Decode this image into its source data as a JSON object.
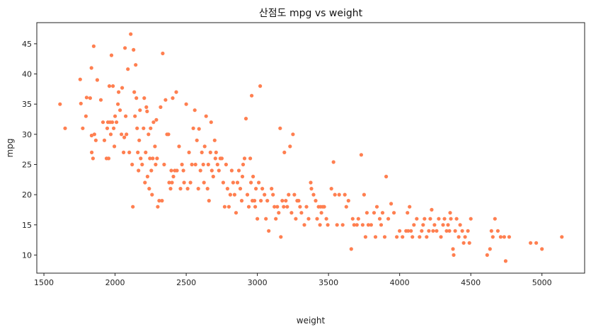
{
  "chart_data": {
    "type": "scatter",
    "title": "산점도 mpg vs weight",
    "xlabel": "weight",
    "ylabel": "mpg",
    "xlim": [
      1450,
      5300
    ],
    "ylim": [
      7,
      48.5
    ],
    "xticks": [
      1500,
      2000,
      2500,
      3000,
      3500,
      4000,
      4500,
      5000
    ],
    "yticks": [
      10,
      15,
      20,
      25,
      30,
      35,
      40,
      45
    ],
    "grid": false,
    "marker_color": "#FF7F50",
    "points": [
      [
        1613,
        35
      ],
      [
        1649,
        31
      ],
      [
        1755,
        39.1
      ],
      [
        1760,
        35.1
      ],
      [
        1773,
        31
      ],
      [
        1795,
        33
      ],
      [
        1800,
        36.1
      ],
      [
        1825,
        36
      ],
      [
        1834,
        41
      ],
      [
        1835,
        29.8
      ],
      [
        1836,
        27
      ],
      [
        1845,
        26
      ],
      [
        1850,
        44.6
      ],
      [
        1855,
        30
      ],
      [
        1865,
        29
      ],
      [
        1875,
        39
      ],
      [
        1900,
        35.7
      ],
      [
        1915,
        32
      ],
      [
        1925,
        29
      ],
      [
        1940,
        26
      ],
      [
        1945,
        31
      ],
      [
        1950,
        32
      ],
      [
        1955,
        26
      ],
      [
        1960,
        38
      ],
      [
        1965,
        32
      ],
      [
        1970,
        30
      ],
      [
        1975,
        43.1
      ],
      [
        1980,
        32
      ],
      [
        1985,
        38
      ],
      [
        1990,
        31
      ],
      [
        1995,
        28
      ],
      [
        2000,
        33
      ],
      [
        2010,
        32
      ],
      [
        2020,
        35
      ],
      [
        2025,
        37
      ],
      [
        2035,
        34
      ],
      [
        2045,
        30
      ],
      [
        2050,
        37.7
      ],
      [
        2060,
        27
      ],
      [
        2065,
        29.5
      ],
      [
        2070,
        44.3
      ],
      [
        2075,
        33
      ],
      [
        2080,
        30
      ],
      [
        2090,
        40.8
      ],
      [
        2100,
        27
      ],
      [
        2110,
        46.6
      ],
      [
        2120,
        25
      ],
      [
        2125,
        18
      ],
      [
        2130,
        44
      ],
      [
        2135,
        37
      ],
      [
        2140,
        33
      ],
      [
        2145,
        41.5
      ],
      [
        2150,
        36
      ],
      [
        2155,
        31
      ],
      [
        2160,
        27
      ],
      [
        2165,
        24
      ],
      [
        2170,
        29
      ],
      [
        2175,
        34
      ],
      [
        2180,
        26
      ],
      [
        2190,
        25
      ],
      [
        2200,
        31
      ],
      [
        2205,
        36
      ],
      [
        2210,
        22
      ],
      [
        2215,
        27
      ],
      [
        2220,
        34.5
      ],
      [
        2225,
        33.8
      ],
      [
        2228,
        23
      ],
      [
        2235,
        30
      ],
      [
        2240,
        21
      ],
      [
        2245,
        26
      ],
      [
        2250,
        31
      ],
      [
        2255,
        24
      ],
      [
        2260,
        20
      ],
      [
        2265,
        26
      ],
      [
        2270,
        32
      ],
      [
        2280,
        28
      ],
      [
        2285,
        25
      ],
      [
        2290,
        32.4
      ],
      [
        2295,
        26
      ],
      [
        2300,
        18
      ],
      [
        2310,
        19
      ],
      [
        2320,
        34.5
      ],
      [
        2330,
        19
      ],
      [
        2335,
        43.4
      ],
      [
        2345,
        25
      ],
      [
        2355,
        35.7
      ],
      [
        2365,
        30
      ],
      [
        2375,
        30
      ],
      [
        2380,
        22
      ],
      [
        2390,
        21
      ],
      [
        2395,
        24
      ],
      [
        2400,
        22
      ],
      [
        2405,
        36
      ],
      [
        2410,
        23
      ],
      [
        2420,
        24
      ],
      [
        2430,
        37
      ],
      [
        2435,
        24
      ],
      [
        2450,
        28
      ],
      [
        2460,
        21
      ],
      [
        2470,
        25
      ],
      [
        2480,
        24
      ],
      [
        2485,
        22
      ],
      [
        2500,
        35
      ],
      [
        2510,
        21
      ],
      [
        2520,
        27
      ],
      [
        2530,
        22
      ],
      [
        2540,
        25
      ],
      [
        2550,
        31
      ],
      [
        2560,
        34
      ],
      [
        2565,
        25
      ],
      [
        2575,
        29
      ],
      [
        2585,
        21
      ],
      [
        2590,
        30.9
      ],
      [
        2600,
        24
      ],
      [
        2610,
        27
      ],
      [
        2620,
        25
      ],
      [
        2625,
        22
      ],
      [
        2630,
        28
      ],
      [
        2640,
        33
      ],
      [
        2650,
        21
      ],
      [
        2655,
        25
      ],
      [
        2660,
        19
      ],
      [
        2670,
        27
      ],
      [
        2675,
        32
      ],
      [
        2680,
        24
      ],
      [
        2690,
        23
      ],
      [
        2700,
        29
      ],
      [
        2705,
        26
      ],
      [
        2710,
        27
      ],
      [
        2720,
        25
      ],
      [
        2730,
        24
      ],
      [
        2740,
        26
      ],
      [
        2750,
        26
      ],
      [
        2760,
        22
      ],
      [
        2770,
        18
      ],
      [
        2780,
        25
      ],
      [
        2790,
        21
      ],
      [
        2800,
        18
      ],
      [
        2810,
        20
      ],
      [
        2820,
        24
      ],
      [
        2830,
        22
      ],
      [
        2840,
        20
      ],
      [
        2850,
        17
      ],
      [
        2860,
        22
      ],
      [
        2870,
        24
      ],
      [
        2880,
        21
      ],
      [
        2890,
        19
      ],
      [
        2895,
        23
      ],
      [
        2900,
        25
      ],
      [
        2910,
        26
      ],
      [
        2920,
        32.6
      ],
      [
        2930,
        20
      ],
      [
        2940,
        18
      ],
      [
        2950,
        26
      ],
      [
        2955,
        22
      ],
      [
        2960,
        36.4
      ],
      [
        2965,
        19
      ],
      [
        2970,
        23
      ],
      [
        2980,
        19
      ],
      [
        2985,
        18
      ],
      [
        2990,
        21
      ],
      [
        3000,
        16
      ],
      [
        3010,
        22
      ],
      [
        3020,
        38
      ],
      [
        3025,
        19
      ],
      [
        3035,
        21
      ],
      [
        3050,
        20
      ],
      [
        3060,
        16
      ],
      [
        3070,
        19
      ],
      [
        3080,
        14
      ],
      [
        3100,
        21
      ],
      [
        3110,
        20
      ],
      [
        3120,
        18
      ],
      [
        3130,
        16
      ],
      [
        3140,
        18
      ],
      [
        3150,
        17
      ],
      [
        3160,
        31
      ],
      [
        3165,
        13
      ],
      [
        3175,
        19
      ],
      [
        3185,
        18
      ],
      [
        3190,
        27
      ],
      [
        3200,
        19
      ],
      [
        3210,
        18
      ],
      [
        3220,
        20
      ],
      [
        3230,
        28
      ],
      [
        3240,
        17
      ],
      [
        3250,
        30
      ],
      [
        3260,
        20
      ],
      [
        3270,
        16
      ],
      [
        3280,
        19
      ],
      [
        3290,
        19
      ],
      [
        3300,
        18
      ],
      [
        3310,
        17
      ],
      [
        3330,
        15
      ],
      [
        3345,
        18
      ],
      [
        3360,
        16
      ],
      [
        3375,
        22
      ],
      [
        3380,
        21
      ],
      [
        3395,
        20
      ],
      [
        3410,
        19
      ],
      [
        3420,
        16
      ],
      [
        3430,
        18
      ],
      [
        3440,
        15
      ],
      [
        3445,
        18
      ],
      [
        3450,
        17
      ],
      [
        3460,
        18
      ],
      [
        3470,
        18
      ],
      [
        3485,
        16
      ],
      [
        3495,
        15
      ],
      [
        3520,
        21
      ],
      [
        3535,
        25.4
      ],
      [
        3545,
        20
      ],
      [
        3560,
        15
      ],
      [
        3575,
        20
      ],
      [
        3600,
        15
      ],
      [
        3615,
        20
      ],
      [
        3625,
        18
      ],
      [
        3640,
        19
      ],
      [
        3660,
        11
      ],
      [
        3670,
        16
      ],
      [
        3680,
        15
      ],
      [
        3700,
        15
      ],
      [
        3710,
        16
      ],
      [
        3730,
        26.6
      ],
      [
        3740,
        15
      ],
      [
        3750,
        20
      ],
      [
        3760,
        13
      ],
      [
        3770,
        17
      ],
      [
        3780,
        15
      ],
      [
        3800,
        15
      ],
      [
        3820,
        17
      ],
      [
        3830,
        13
      ],
      [
        3840,
        18
      ],
      [
        3860,
        16
      ],
      [
        3870,
        15
      ],
      [
        3880,
        17
      ],
      [
        3895,
        13
      ],
      [
        3905,
        23
      ],
      [
        3920,
        16
      ],
      [
        3940,
        18.5
      ],
      [
        3960,
        17
      ],
      [
        3980,
        13
      ],
      [
        4000,
        14
      ],
      [
        4020,
        13
      ],
      [
        4045,
        14
      ],
      [
        4055,
        17
      ],
      [
        4060,
        14
      ],
      [
        4070,
        18
      ],
      [
        4080,
        14
      ],
      [
        4090,
        13
      ],
      [
        4100,
        15
      ],
      [
        4120,
        16
      ],
      [
        4140,
        13
      ],
      [
        4155,
        14
      ],
      [
        4165,
        15
      ],
      [
        4175,
        16
      ],
      [
        4190,
        13
      ],
      [
        4205,
        14
      ],
      [
        4215,
        16
      ],
      [
        4225,
        17.5
      ],
      [
        4235,
        14
      ],
      [
        4245,
        15
      ],
      [
        4260,
        14
      ],
      [
        4275,
        16
      ],
      [
        4290,
        13
      ],
      [
        4305,
        15
      ],
      [
        4315,
        16
      ],
      [
        4330,
        14
      ],
      [
        4340,
        15
      ],
      [
        4350,
        14
      ],
      [
        4355,
        17
      ],
      [
        4360,
        16
      ],
      [
        4375,
        11
      ],
      [
        4380,
        10
      ],
      [
        4390,
        14
      ],
      [
        4400,
        16
      ],
      [
        4415,
        13
      ],
      [
        4425,
        15
      ],
      [
        4440,
        14
      ],
      [
        4450,
        12
      ],
      [
        4460,
        13
      ],
      [
        4480,
        14
      ],
      [
        4490,
        12
      ],
      [
        4500,
        16
      ],
      [
        4615,
        10
      ],
      [
        4635,
        11
      ],
      [
        4645,
        14
      ],
      [
        4655,
        13
      ],
      [
        4670,
        16
      ],
      [
        4690,
        14
      ],
      [
        4710,
        13
      ],
      [
        4735,
        13
      ],
      [
        4745,
        9
      ],
      [
        4770,
        13
      ],
      [
        4920,
        12
      ],
      [
        4960,
        12
      ],
      [
        5000,
        11
      ],
      [
        5140,
        13
      ]
    ]
  }
}
